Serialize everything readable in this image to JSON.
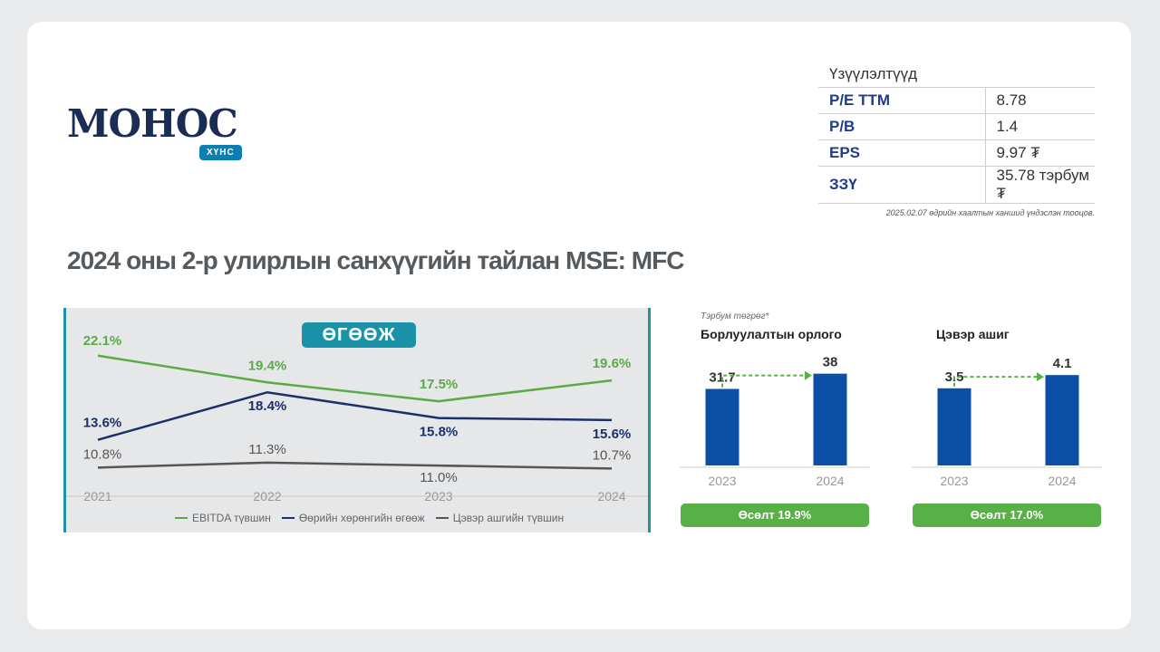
{
  "logo": {
    "name": "МОНОС",
    "badge": "ХҮНС"
  },
  "ratios": {
    "title": "Үзүүлэлтүүд",
    "rows": [
      {
        "label": "P/E TTM",
        "value": "8.78"
      },
      {
        "label": "P/B",
        "value": "1.4"
      },
      {
        "label": "EPS",
        "value": "9.97 ₮"
      },
      {
        "label": "ЗЗҮ",
        "value": "35.78 тэрбум ₮"
      }
    ],
    "note": "2025.02.07 өдрийн хаалтын ханшид үндэслэн тооцов."
  },
  "main_title": "2024 оны 2-р улирлын санхүүгийн тайлан  MSE: MFC",
  "unit_note": "Тэрбум төгрөг*",
  "colors": {
    "ebitda": "#5aaa46",
    "roe": "#1b2f6b",
    "net": "#555555",
    "bar": "#0b4fa6",
    "teal": "#1a93a8",
    "growth": "#59b046"
  },
  "chart_data": [
    {
      "type": "line",
      "title": "ӨГӨӨЖ",
      "categories": [
        "2021",
        "2022",
        "2023",
        "2024"
      ],
      "series": [
        {
          "name": "EBITDA түвшин",
          "values": [
            22.1,
            19.4,
            17.5,
            19.6
          ],
          "labels": [
            "22.1%",
            "19.4%",
            "17.5%",
            "19.6%"
          ]
        },
        {
          "name": "Өөрийн хөрөнгийн өгөөж",
          "values": [
            13.6,
            18.4,
            15.8,
            15.6
          ],
          "labels": [
            "13.6%",
            "18.4%",
            "15.8%",
            "15.6%"
          ]
        },
        {
          "name": "Цэвэр ашгийн түвшин",
          "values": [
            10.8,
            11.3,
            11.0,
            10.7
          ],
          "labels": [
            "10.8%",
            "11.3%",
            "11.0%",
            "10.7%"
          ]
        }
      ],
      "legend": "bottom"
    },
    {
      "type": "bar",
      "title": "Борлуулалтын орлого",
      "categories": [
        "2023",
        "2024"
      ],
      "values": [
        31.7,
        38
      ],
      "labels": [
        "31.7",
        "38"
      ],
      "growth": "Өсөлт 19.9%"
    },
    {
      "type": "bar",
      "title": "Цэвэр ашиг",
      "categories": [
        "2023",
        "2024"
      ],
      "values": [
        3.5,
        4.1
      ],
      "labels": [
        "3.5",
        "4.1"
      ],
      "growth": "Өсөлт 17.0%"
    }
  ]
}
